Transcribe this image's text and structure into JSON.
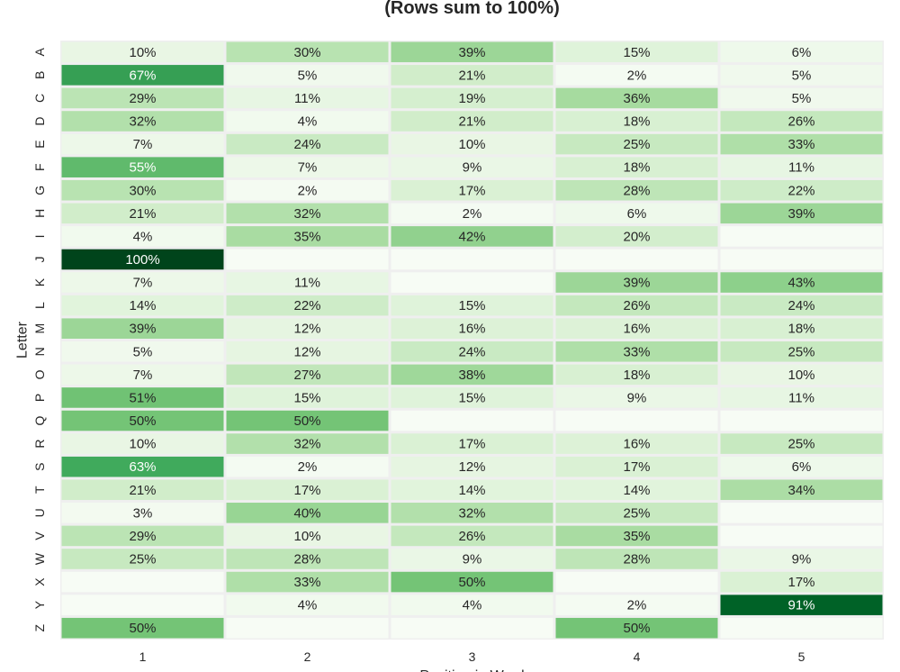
{
  "chart_data": {
    "type": "heatmap",
    "title": "(Rows sum to 100%)",
    "xlabel": "Position in Word",
    "ylabel": "Letter",
    "colormap": "Greens",
    "vrange": [
      0,
      100
    ],
    "x_categories": [
      "1",
      "2",
      "3",
      "4",
      "5"
    ],
    "y_categories": [
      "A",
      "B",
      "C",
      "D",
      "E",
      "F",
      "G",
      "H",
      "I",
      "J",
      "K",
      "L",
      "M",
      "N",
      "O",
      "P",
      "Q",
      "R",
      "S",
      "T",
      "U",
      "V",
      "W",
      "X",
      "Y",
      "Z"
    ],
    "values": [
      [
        10,
        30,
        39,
        15,
        6
      ],
      [
        67,
        5,
        21,
        2,
        5
      ],
      [
        29,
        11,
        19,
        36,
        5
      ],
      [
        32,
        4,
        21,
        18,
        26
      ],
      [
        7,
        24,
        10,
        25,
        33
      ],
      [
        55,
        7,
        9,
        18,
        11
      ],
      [
        30,
        2,
        17,
        28,
        22
      ],
      [
        21,
        32,
        2,
        6,
        39
      ],
      [
        4,
        35,
        42,
        20,
        null
      ],
      [
        100,
        null,
        null,
        null,
        null
      ],
      [
        7,
        11,
        null,
        39,
        43
      ],
      [
        14,
        22,
        15,
        26,
        24
      ],
      [
        39,
        12,
        16,
        16,
        18
      ],
      [
        5,
        12,
        24,
        33,
        25
      ],
      [
        7,
        27,
        38,
        18,
        10
      ],
      [
        51,
        15,
        15,
        9,
        11
      ],
      [
        50,
        50,
        null,
        null,
        null
      ],
      [
        10,
        32,
        17,
        16,
        25
      ],
      [
        63,
        2,
        12,
        17,
        6
      ],
      [
        21,
        17,
        14,
        14,
        34
      ],
      [
        3,
        40,
        32,
        25,
        null
      ],
      [
        29,
        10,
        26,
        35,
        null
      ],
      [
        25,
        28,
        9,
        28,
        9
      ],
      [
        null,
        33,
        50,
        null,
        17
      ],
      [
        null,
        4,
        4,
        2,
        91
      ],
      [
        50,
        null,
        null,
        50,
        null
      ]
    ],
    "value_format": "percent"
  }
}
